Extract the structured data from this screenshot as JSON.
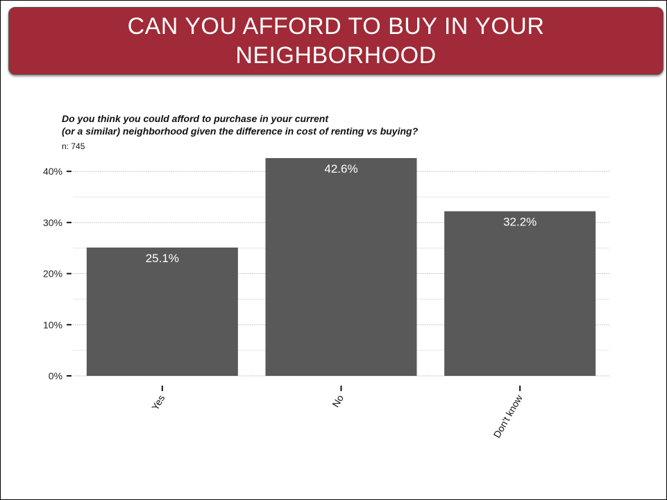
{
  "slide": {
    "title": "CAN YOU AFFORD TO BUY IN YOUR NEIGHBORHOOD",
    "question_line1": "Do you think you could afford to purchase in your current",
    "question_line2": "(or a similar) neighborhood given the difference in cost of renting vs buying?",
    "sample_size": "n:  745"
  },
  "colors": {
    "banner": "#a02a37",
    "bar": "#595959",
    "grid": "#cccccc"
  },
  "chart_data": {
    "type": "bar",
    "categories": [
      "Yes",
      "No",
      "Don't know"
    ],
    "values": [
      25.1,
      42.6,
      32.2
    ],
    "value_labels": [
      "25.1%",
      "42.6%",
      "32.2%"
    ],
    "ylim": [
      0,
      43
    ],
    "yticks": [
      0,
      10,
      20,
      30,
      40
    ],
    "ytick_labels": [
      "0%",
      "10%",
      "20%",
      "30%",
      "40%"
    ],
    "grid": true,
    "legend": false
  }
}
